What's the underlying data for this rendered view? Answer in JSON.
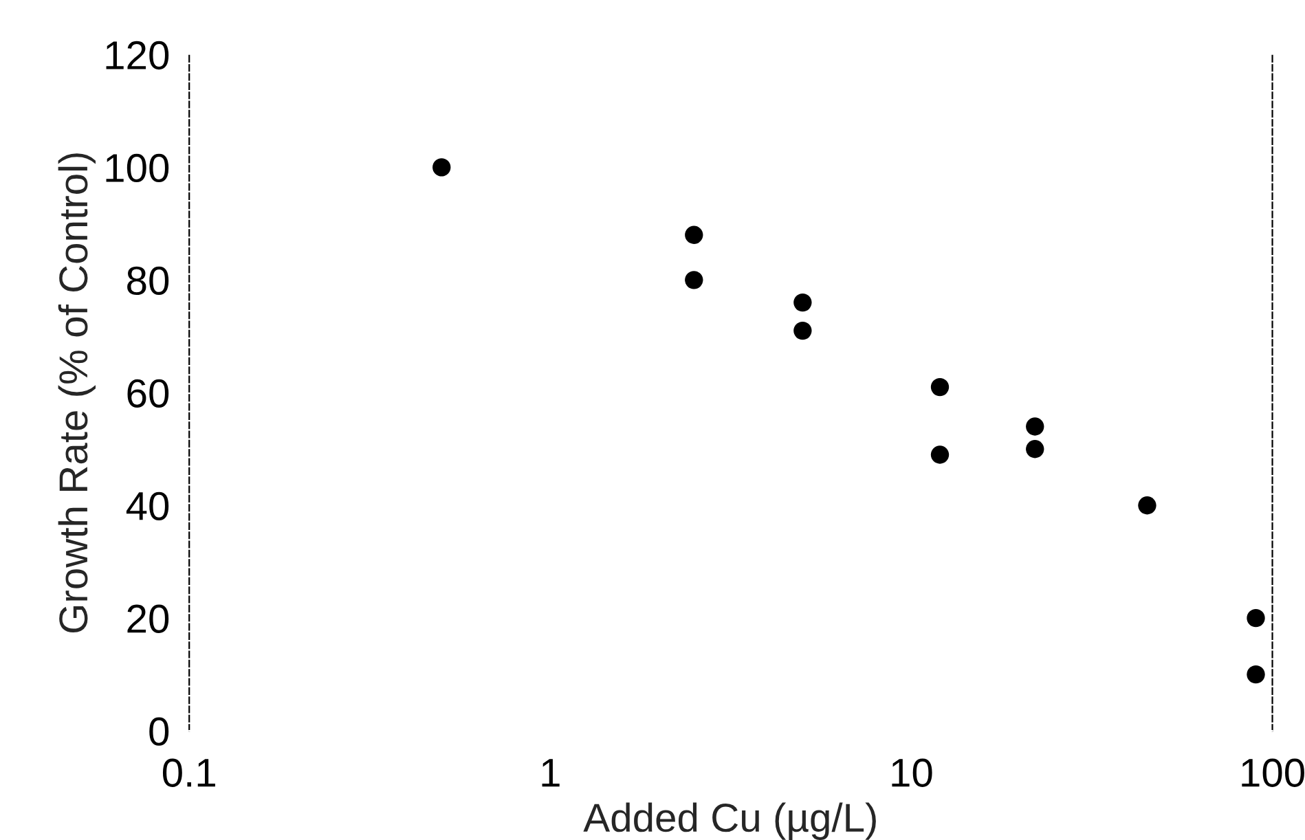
{
  "chart_data": {
    "type": "scatter",
    "xlabel": "Added Cu (µg/L)",
    "ylabel": "Growth Rate (% of Control)",
    "log": "x",
    "xlim": [
      0.1,
      100
    ],
    "xticks": [
      0.1,
      1,
      10,
      100
    ],
    "ylim": [
      0,
      120
    ],
    "yticks": [
      0,
      20,
      40,
      60,
      80,
      100,
      120
    ],
    "marker": "circle",
    "grid": false,
    "legend": false,
    "series": [
      {
        "color": "#000000",
        "x": [
          0.5,
          2.5,
          2.5,
          5,
          5,
          12,
          12,
          22,
          22,
          45,
          90,
          90
        ],
        "values": [
          100,
          88,
          80,
          76,
          71,
          61,
          49,
          54,
          50,
          40,
          20,
          10
        ]
      }
    ]
  }
}
